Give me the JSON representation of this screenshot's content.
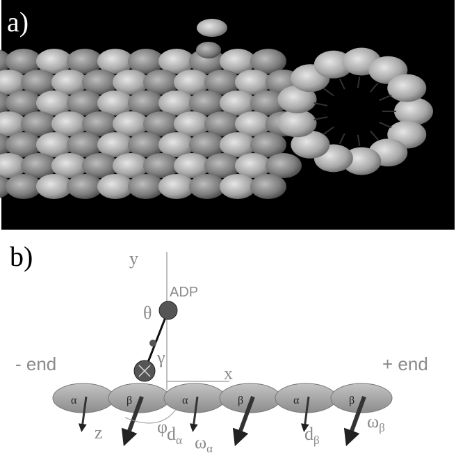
{
  "panel_a": {
    "label": "a)"
  },
  "panel_b": {
    "label": "b)",
    "axes": {
      "y": "y",
      "x": "x",
      "z": "z"
    },
    "ends": {
      "minus": "- end",
      "plus": "+ end"
    },
    "ligand": "ADP",
    "angles": {
      "theta": "θ",
      "gamma": "γ",
      "phi": "φ"
    },
    "subunits": [
      "α",
      "β",
      "α",
      "β",
      "α",
      "β"
    ],
    "offsets": [
      {
        "symbol": "d",
        "subscript": "α"
      },
      {
        "symbol": "ω",
        "subscript": "α"
      },
      {
        "symbol": "d",
        "subscript": "β"
      },
      {
        "symbol": "ω",
        "subscript": "β"
      }
    ]
  }
}
